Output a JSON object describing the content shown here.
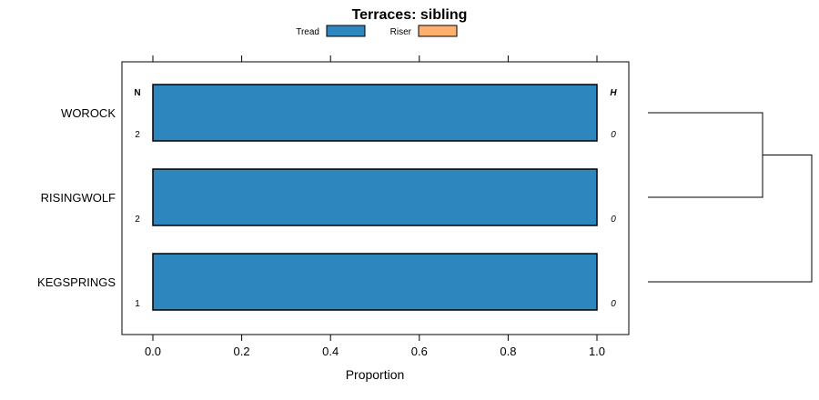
{
  "chart_data": {
    "type": "bar",
    "orientation": "horizontal",
    "stacked": true,
    "title": "Terraces: sibling",
    "xlabel": "Proportion",
    "ylabel": "",
    "xlim": [
      0,
      1
    ],
    "x_ticks": [
      "0.0",
      "0.2",
      "0.4",
      "0.6",
      "0.8",
      "1.0"
    ],
    "categories": [
      "WOROCK",
      "RISINGWOLF",
      "KEGSPRINGS"
    ],
    "series": [
      {
        "name": "Tread",
        "color": "#2e86bf",
        "values": [
          1.0,
          1.0,
          1.0
        ]
      },
      {
        "name": "Riser",
        "color": "#ffb06e",
        "values": [
          0.0,
          0.0,
          0.0
        ]
      }
    ],
    "n_header": "N",
    "h_header": "H",
    "n_values": [
      "2",
      "2",
      "1"
    ],
    "h_values": [
      "0",
      "0",
      "0"
    ],
    "legend_position": "top-center",
    "dendrogram": true
  }
}
